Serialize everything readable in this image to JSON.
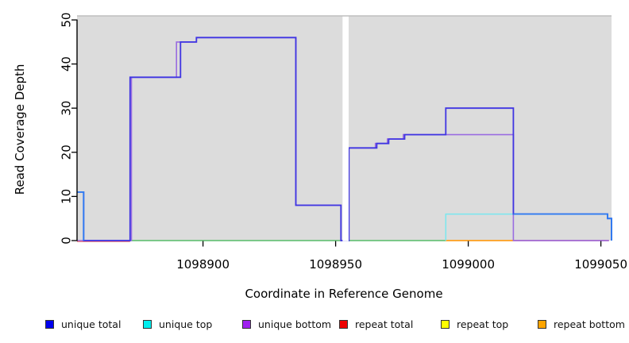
{
  "chart_data": {
    "type": "line",
    "subtype": "step-coverage-plot",
    "title": "",
    "xlabel": "Coordinate in Reference Genome",
    "ylabel": "Read Coverage Depth",
    "xlim": [
      1098852.5,
      1099054
    ],
    "ylim": [
      0,
      51
    ],
    "grid": false,
    "panel_bg": "#dcdcdc",
    "panel_top_edge": "#bfbfbf",
    "axis_color": "#000000",
    "x_axis": {
      "ticks": [
        1098900,
        1098950,
        1099000,
        1099050
      ],
      "tick_labels": [
        "1098900",
        "1098950",
        "1099000",
        "1099050"
      ]
    },
    "y_axis": {
      "ticks": [
        0,
        10,
        20,
        30,
        40,
        50
      ],
      "tick_labels": [
        "0",
        "10",
        "20",
        "30",
        "40",
        "50"
      ],
      "labels_rotated": true
    },
    "mask_region": {
      "from": 1098952.6,
      "to": 1098954.9,
      "color": "#ffffff"
    },
    "series": [
      {
        "name": "baseline-red-repeat-total",
        "apparent_color": "#f07373",
        "width": 1.4,
        "offset_y": 1.2,
        "segments": [
          {
            "from": 1098852.5,
            "to": 1098872.5,
            "depth": 0
          }
        ]
      },
      {
        "name": "baseline-green-overlap",
        "apparent_color": "#57bb68",
        "width": 1.5,
        "segments": [
          {
            "from": 1098872.5,
            "to": 1098991.5,
            "depth": 0
          }
        ]
      },
      {
        "name": "baseline-orange-repeat-bottom",
        "apparent_color": "#ff9e1d",
        "width": 1.8,
        "segments": [
          {
            "from": 1098991.5,
            "to": 1099017,
            "depth": 0
          }
        ]
      },
      {
        "name": "baseline-crimson-overlap",
        "apparent_color": "#ce3a6f",
        "width": 1.4,
        "segments": [
          {
            "from": 1099017,
            "to": 1099053,
            "depth": 0
          }
        ]
      },
      {
        "name": "unique-top-cyan",
        "apparent_color": "#79e7ef",
        "width": 1.5,
        "start_rise": true,
        "end_drop": true,
        "segments": [
          {
            "from": 1098991.5,
            "to": 1099052.5,
            "depth": 6
          },
          {
            "from": 1099052.5,
            "to": 1099054,
            "depth": 5
          }
        ]
      },
      {
        "name": "unique-bottom-purple",
        "apparent_color": "#9a6de0",
        "width": 1.6,
        "segments": [
          {
            "from": 1098852.5,
            "to": 1098873,
            "depth": 0
          },
          {
            "from": 1098873,
            "to": 1098890,
            "depth": 37
          },
          {
            "from": 1098890,
            "to": 1098897.5,
            "depth": 45
          },
          {
            "from": 1098897.5,
            "to": 1098935,
            "depth": 46
          },
          {
            "from": 1098935,
            "to": 1098952,
            "depth": 8
          },
          {
            "from": 1098952,
            "to": 1098955,
            "depth": 0
          },
          {
            "from": 1098955,
            "to": 1098965,
            "depth": 21
          },
          {
            "from": 1098965,
            "to": 1098969.5,
            "depth": 22
          },
          {
            "from": 1098969.5,
            "to": 1098975.5,
            "depth": 23
          },
          {
            "from": 1098975.5,
            "to": 1099017,
            "depth": 24
          },
          {
            "from": 1099017,
            "to": 1099053,
            "depth": 0
          }
        ]
      },
      {
        "name": "unique-total-blue",
        "apparent_color": "#3f35e2",
        "width": 1.8,
        "end_drop": true,
        "segments": [
          {
            "from": 1098852.5,
            "to": 1098855,
            "depth": 11
          },
          {
            "from": 1098855,
            "to": 1098872.5,
            "depth": 0
          },
          {
            "from": 1098872.5,
            "to": 1098891.5,
            "depth": 37
          },
          {
            "from": 1098891.5,
            "to": 1098897.5,
            "depth": 45
          },
          {
            "from": 1098897.5,
            "to": 1098935,
            "depth": 46
          },
          {
            "from": 1098935,
            "to": 1098952,
            "depth": 8
          },
          {
            "from": 1098952,
            "to": 1098955,
            "depth": 0
          },
          {
            "from": 1098955,
            "to": 1098965.5,
            "depth": 21
          },
          {
            "from": 1098965.5,
            "to": 1098970,
            "depth": 22
          },
          {
            "from": 1098970,
            "to": 1098976,
            "depth": 23
          },
          {
            "from": 1098976,
            "to": 1098991.5,
            "depth": 24
          },
          {
            "from": 1098991.5,
            "to": 1099017,
            "depth": 30
          },
          {
            "from": 1099017,
            "to": 1099052.5,
            "depth": 6
          },
          {
            "from": 1099052.5,
            "to": 1099054,
            "depth": 5
          }
        ]
      },
      {
        "name": "unique-total-left-azure-overlay",
        "apparent_color": "#2f7df2",
        "width": 1.8,
        "end_drop": true,
        "segments": [
          {
            "from": 1098852.5,
            "to": 1098855,
            "depth": 11
          }
        ]
      },
      {
        "name": "unique-total-right-azure-overlay",
        "apparent_color": "#2f7df2",
        "width": 1.8,
        "end_drop": true,
        "segments": [
          {
            "from": 1099017,
            "to": 1099052.5,
            "depth": 6
          },
          {
            "from": 1099052.5,
            "to": 1099054,
            "depth": 5
          }
        ]
      }
    ]
  },
  "legend": {
    "items": [
      {
        "label": "unique total",
        "color": "#0000ee"
      },
      {
        "label": "unique top",
        "color": "#00eeee"
      },
      {
        "label": "unique bottom",
        "color": "#a020f0"
      },
      {
        "label": "repeat total",
        "color": "#ee0000"
      },
      {
        "label": "repeat top",
        "color": "#ffff00"
      },
      {
        "label": "repeat bottom",
        "color": "#ffa500"
      }
    ]
  }
}
